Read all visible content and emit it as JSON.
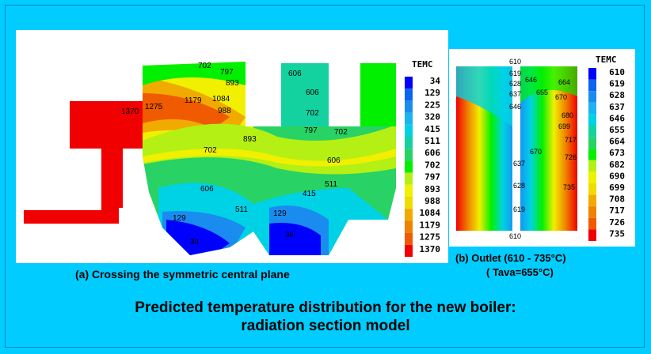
{
  "panel_a": {
    "legend_title": "TEMC",
    "legend_values": [
      "34",
      "129",
      "225",
      "320",
      "415",
      "511",
      "606",
      "702",
      "797",
      "893",
      "988",
      "1084",
      "1179",
      "1275",
      "1370"
    ],
    "legend_colors": [
      "#0000ff",
      "#0a64f0",
      "#1a8cf0",
      "#1ab4f0",
      "#00d2e6",
      "#14d2a0",
      "#28d264",
      "#00f000",
      "#b4f014",
      "#f0f000",
      "#f0dc00",
      "#f0aa00",
      "#f08200",
      "#f05a00",
      "#f00000"
    ],
    "contour_labels": [
      "702",
      "797",
      "893",
      "1370",
      "1275",
      "1179",
      "1084",
      "988",
      "893",
      "702",
      "606",
      "606",
      "702",
      "797",
      "702",
      "606",
      "511",
      "415",
      "606",
      "511",
      "129",
      "34",
      "129",
      "34"
    ],
    "caption": "(a) Crossing the symmetric central plane"
  },
  "panel_b": {
    "legend_title": "TEMC",
    "legend_values": [
      "610",
      "619",
      "628",
      "637",
      "646",
      "655",
      "664",
      "673",
      "682",
      "690",
      "699",
      "708",
      "717",
      "726",
      "735"
    ],
    "contour_labels": [
      "610",
      "619",
      "628",
      "637",
      "646",
      "646",
      "655",
      "664",
      "670",
      "680",
      "699",
      "717",
      "726",
      "735",
      "670",
      "637",
      "628",
      "619",
      "610"
    ],
    "caption_line1": "(b) Outlet (610 - 735°C)",
    "caption_line2": "( Tava=655°C)"
  },
  "title_line1": "Predicted temperature distribution for the new boiler:",
  "title_line2": "radiation section model"
}
